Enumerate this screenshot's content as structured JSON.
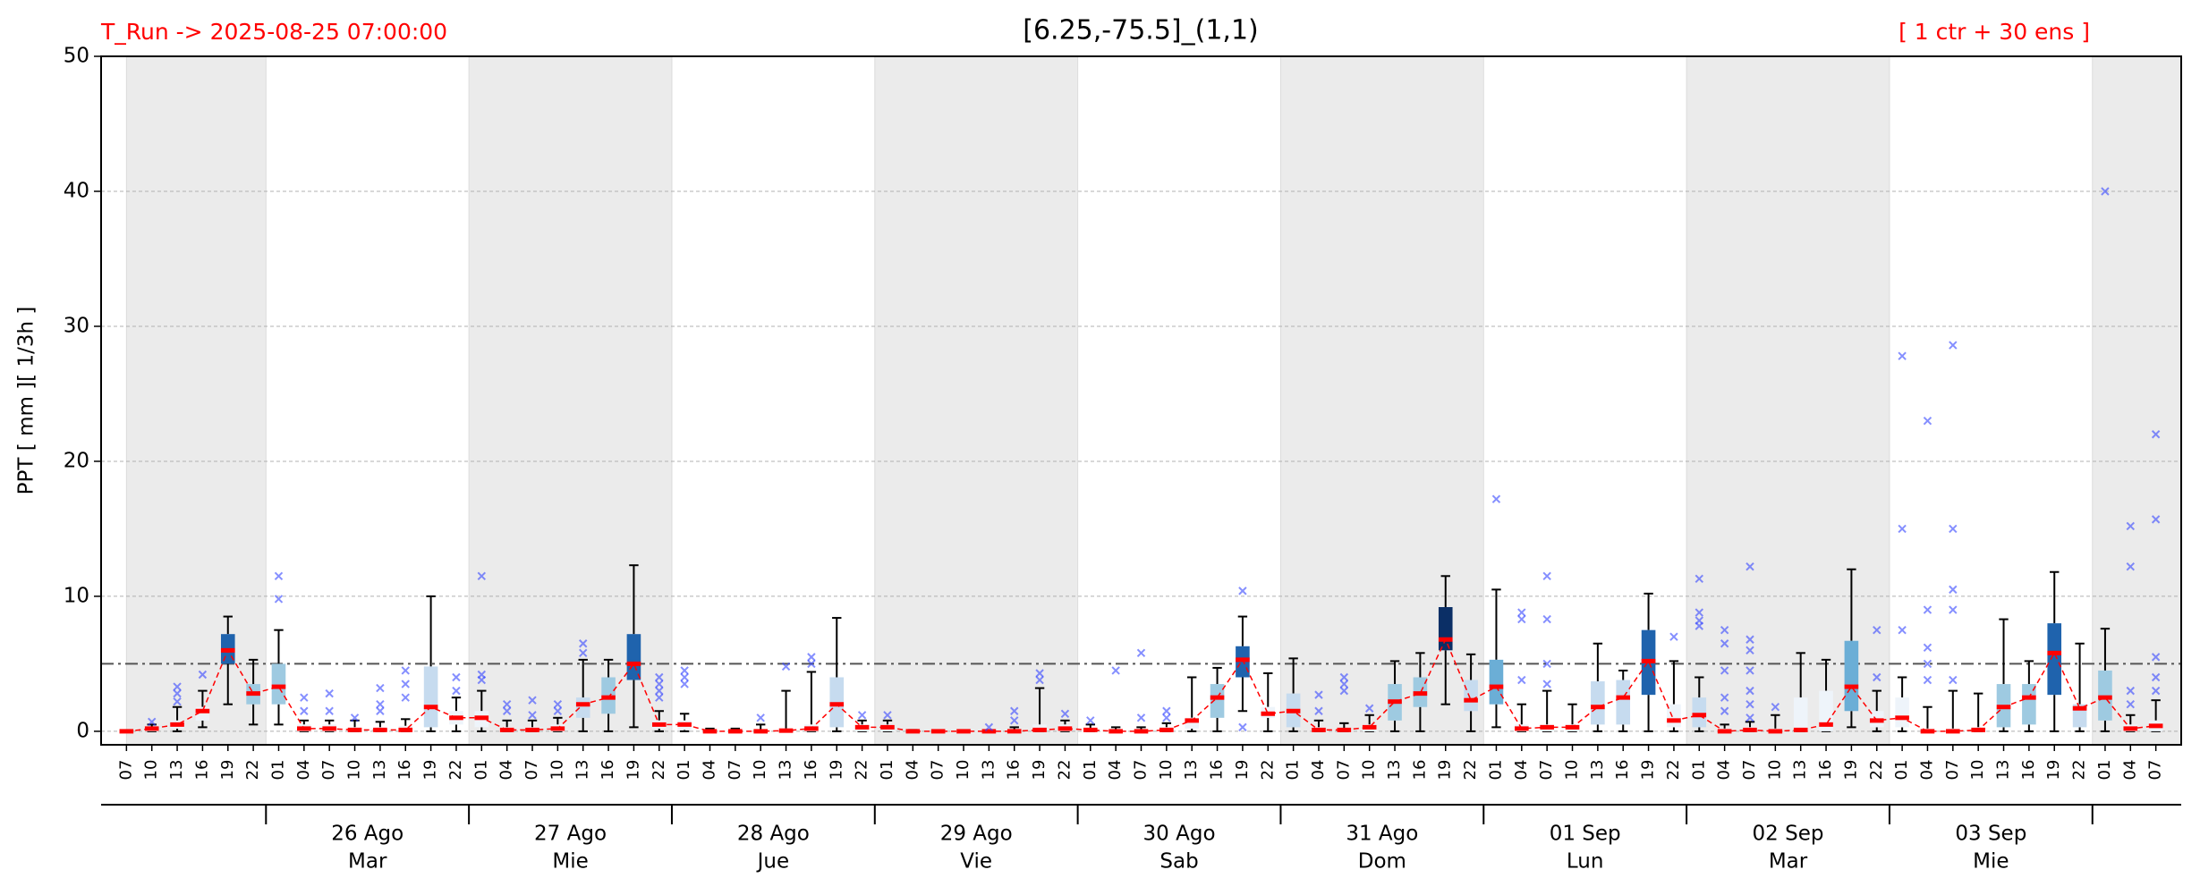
{
  "chart_data": {
    "type": "box",
    "title": "[6.25,-75.5]_(1,1)",
    "run_label": "T_Run -> 2025-08-25  07:00:00",
    "ens_label": "[ 1 ctr + 30 ens ]",
    "y_label": "PPT  [ mm ][ 1/3h ]",
    "ylim": [
      -1,
      50
    ],
    "yticks": [
      0,
      10,
      20,
      30,
      40,
      50
    ],
    "grid": true,
    "threshold": 5,
    "median_color": "#ff0000",
    "whisker_color": "#000000",
    "outlier_color": "#3344ff",
    "threshold_color": "#555555",
    "day_groups": [
      {
        "date": null,
        "weekday": null,
        "hours": [
          "07",
          "10",
          "13",
          "16",
          "19",
          "22"
        ]
      },
      {
        "date": "26 Ago",
        "weekday": "Mar",
        "hours": [
          "01",
          "04",
          "07",
          "10",
          "13",
          "16",
          "19",
          "22"
        ]
      },
      {
        "date": "27 Ago",
        "weekday": "Mie",
        "hours": [
          "01",
          "04",
          "07",
          "10",
          "13",
          "16",
          "19",
          "22"
        ]
      },
      {
        "date": "28 Ago",
        "weekday": "Jue",
        "hours": [
          "01",
          "04",
          "07",
          "10",
          "13",
          "16",
          "19",
          "22"
        ]
      },
      {
        "date": "29 Ago",
        "weekday": "Vie",
        "hours": [
          "01",
          "04",
          "07",
          "10",
          "13",
          "16",
          "19",
          "22"
        ]
      },
      {
        "date": "30 Ago",
        "weekday": "Sab",
        "hours": [
          "01",
          "04",
          "07",
          "10",
          "13",
          "16",
          "19",
          "22"
        ]
      },
      {
        "date": "31 Ago",
        "weekday": "Dom",
        "hours": [
          "01",
          "04",
          "07",
          "10",
          "13",
          "16",
          "19",
          "22"
        ]
      },
      {
        "date": "01 Sep",
        "weekday": "Lun",
        "hours": [
          "01",
          "04",
          "07",
          "10",
          "13",
          "16",
          "19",
          "22"
        ]
      },
      {
        "date": "02 Sep",
        "weekday": "Mar",
        "hours": [
          "01",
          "04",
          "07",
          "10",
          "13",
          "16",
          "19",
          "22"
        ]
      },
      {
        "date": "03 Sep",
        "weekday": "Mie",
        "hours": [
          "01",
          "04",
          "07",
          "10",
          "13",
          "16",
          "19",
          "22"
        ]
      },
      {
        "date": null,
        "weekday": null,
        "hours": [
          "01",
          "04",
          "07"
        ]
      }
    ],
    "median": [
      0,
      0.2,
      0.5,
      1.5,
      6,
      2.8,
      3.3,
      0.2,
      0.2,
      0.1,
      0.1,
      0.1,
      1.8,
      1,
      1,
      0.1,
      0.1,
      0.2,
      2,
      2.5,
      5,
      0.5,
      0.5,
      0,
      0,
      0,
      0.05,
      0.2,
      2,
      0.3,
      0.3,
      0,
      0,
      0,
      0,
      0,
      0.1,
      0.2,
      0.1,
      0,
      0,
      0.1,
      0.8,
      2.5,
      5.3,
      1.3,
      1.5,
      0.1,
      0.1,
      0.3,
      2.2,
      2.8,
      6.8,
      2.3,
      3.3,
      0.2,
      0.3,
      0.3,
      1.8,
      2.5,
      5.2,
      0.8,
      1.2,
      0,
      0.1,
      0,
      0.1,
      0.5,
      3.3,
      0.8,
      1,
      0,
      0,
      0.1,
      1.8,
      2.5,
      5.8,
      1.7,
      2.5,
      0.2,
      0.4
    ],
    "q1": [
      0,
      0,
      0.2,
      0.8,
      5,
      2,
      2,
      0,
      0,
      0,
      0,
      0,
      0.3,
      0.5,
      0.3,
      0,
      0,
      0,
      1,
      1.3,
      3.8,
      0.2,
      0.1,
      0,
      0,
      0,
      0,
      0,
      0.3,
      0,
      0,
      0,
      0,
      0,
      0,
      0,
      0,
      0,
      0,
      0,
      0,
      0,
      0.2,
      1,
      4,
      1,
      0.3,
      0,
      0,
      0,
      0.8,
      1.8,
      6,
      1.5,
      2,
      0,
      0,
      0,
      0.5,
      0.5,
      2.7,
      0.3,
      0.3,
      0,
      0,
      0,
      0,
      0,
      1.5,
      0.3,
      0.3,
      0,
      0,
      0,
      0.3,
      0.5,
      2.7,
      0.3,
      0.8,
      0,
      0
    ],
    "q3": [
      0,
      0.3,
      0.8,
      1.8,
      7.2,
      3.5,
      5,
      0.5,
      0.5,
      0.3,
      0.3,
      0.4,
      4.8,
      1.5,
      1.5,
      0.3,
      0.3,
      0.5,
      2.5,
      4,
      7.2,
      0.8,
      0.8,
      0.1,
      0.1,
      0.1,
      0.2,
      0.5,
      4,
      0.5,
      0.5,
      0,
      0,
      0,
      0,
      0.1,
      0.5,
      0.5,
      0.2,
      0.1,
      0.1,
      0.3,
      1,
      3.5,
      6.3,
      1.8,
      2.8,
      0.3,
      0.2,
      0.5,
      3.5,
      4,
      9.2,
      3.8,
      5.3,
      0.5,
      0.5,
      0.5,
      3.7,
      3.8,
      7.5,
      2,
      2.5,
      0.2,
      0.3,
      0.2,
      2.5,
      3,
      6.7,
      1.5,
      2.5,
      0.2,
      0.2,
      0.3,
      3.5,
      3.5,
      8,
      2,
      4.5,
      0.5,
      0.8
    ],
    "whisker_low": [
      0,
      0,
      0,
      0.3,
      2,
      0.5,
      0.5,
      0,
      0,
      0,
      0,
      0,
      0,
      0,
      0,
      0,
      0,
      0,
      0,
      0,
      0.3,
      0,
      0,
      0,
      0,
      0,
      0,
      0,
      0,
      0,
      0,
      0,
      0,
      0,
      0,
      0,
      0,
      0,
      0,
      0,
      0,
      0,
      0,
      0,
      1.5,
      0,
      0,
      0,
      0,
      0,
      0,
      0,
      2,
      0,
      0.3,
      0,
      0,
      0,
      0,
      0,
      0,
      0,
      0,
      0,
      0,
      0,
      0,
      0,
      0.3,
      0,
      0,
      0,
      0,
      0,
      0,
      0,
      0,
      0,
      0,
      0,
      0
    ],
    "whisker_high": [
      0,
      0.5,
      1.8,
      3,
      8.5,
      5.3,
      7.5,
      0.8,
      0.8,
      0.8,
      0.7,
      0.9,
      10,
      2.5,
      3,
      0.8,
      0.8,
      1,
      5.3,
      5.3,
      12.3,
      1.5,
      1.3,
      0.2,
      0.2,
      0.5,
      3,
      4.4,
      8.4,
      0.8,
      0.8,
      0.1,
      0,
      0,
      0,
      0.3,
      3.2,
      0.8,
      0.5,
      0.3,
      0.3,
      0.6,
      4,
      4.7,
      8.5,
      4.3,
      5.4,
      0.8,
      0.6,
      1.2,
      5.2,
      5.8,
      11.5,
      5.7,
      10.5,
      2,
      3,
      2,
      6.5,
      4.5,
      10.2,
      5.2,
      4,
      0.5,
      0.7,
      1.2,
      5.8,
      5.3,
      12,
      3,
      4,
      1.8,
      3,
      2.8,
      8.3,
      5.2,
      11.8,
      6.5,
      7.6,
      1.2,
      2.3
    ],
    "outliers": [
      [],
      [
        0.7
      ],
      [
        2.2,
        2.8,
        3.3
      ],
      [
        4.2
      ],
      [],
      [],
      [
        9.8,
        11.5
      ],
      [
        1.5,
        2.5
      ],
      [
        1.5,
        2.8
      ],
      [
        1
      ],
      [
        1.5,
        2,
        3.2
      ],
      [
        2.5,
        3.5,
        4.5
      ],
      [],
      [
        3,
        4
      ],
      [
        3.8,
        4.2,
        11.5
      ],
      [
        1.5,
        2
      ],
      [
        1.2,
        2.3
      ],
      [
        1.5,
        2
      ],
      [
        5.8,
        6.5
      ],
      [],
      [],
      [
        2.5,
        3,
        3.5,
        4
      ],
      [
        3.5,
        4,
        4.5
      ],
      [],
      [],
      [
        1
      ],
      [
        4.8
      ],
      [
        5,
        5.5
      ],
      [],
      [
        1.2
      ],
      [
        1.2
      ],
      [],
      [],
      [],
      [
        0.3
      ],
      [
        0.8,
        1.5
      ],
      [
        3.8,
        4.3
      ],
      [
        1.3
      ],
      [
        0.8
      ],
      [
        4.5
      ],
      [
        1,
        5.8
      ],
      [
        1,
        1.5
      ],
      [],
      [],
      [
        0.3,
        10.4
      ],
      [],
      [],
      [
        1.5,
        2.7
      ],
      [
        3,
        3.5,
        4
      ],
      [
        1.7
      ],
      [],
      [],
      [],
      [],
      [
        17.2
      ],
      [
        3.8,
        8.3,
        8.8
      ],
      [
        3.5,
        5,
        8.3,
        11.5
      ],
      [],
      [],
      [],
      [],
      [
        7
      ],
      [
        7.8,
        8.2,
        8.8,
        11.3
      ],
      [
        1.5,
        2.5,
        4.5,
        6.5,
        7.5
      ],
      [
        1,
        2,
        3,
        4.5,
        6,
        6.8,
        12.2
      ],
      [
        1.8
      ],
      [],
      [],
      [],
      [
        4,
        7.5
      ],
      [
        7.5,
        15,
        27.8
      ],
      [
        3.8,
        5,
        6.2,
        9,
        23
      ],
      [
        3.8,
        9,
        10.5,
        15,
        28.6
      ],
      [],
      [],
      [],
      [],
      [],
      [
        40
      ],
      [
        2,
        3,
        12.2,
        15.2
      ],
      [
        3,
        4,
        5.5,
        15.7,
        22
      ]
    ],
    "box_colors": [
      "#eef4fa",
      "#eef4fa",
      "#eef4fa",
      "#eef4fa",
      "#1f63ad",
      "#9ecae1",
      "#9ecae1",
      "#eef4fa",
      "#eef4fa",
      "#eef4fa",
      "#eef4fa",
      "#eef4fa",
      "#c6dbef",
      "#eef4fa",
      "#eef4fa",
      "#eef4fa",
      "#eef4fa",
      "#eef4fa",
      "#c6dbef",
      "#9ecae1",
      "#1f63ad",
      "#eef4fa",
      "#eef4fa",
      "#eef4fa",
      "#eef4fa",
      "#eef4fa",
      "#eef4fa",
      "#eef4fa",
      "#c6dbef",
      "#eef4fa",
      "#eef4fa",
      "#eef4fa",
      "#eef4fa",
      "#eef4fa",
      "#eef4fa",
      "#eef4fa",
      "#eef4fa",
      "#eef4fa",
      "#eef4fa",
      "#eef4fa",
      "#eef4fa",
      "#eef4fa",
      "#eef4fa",
      "#9ecae1",
      "#1f63ad",
      "#eef4fa",
      "#c6dbef",
      "#eef4fa",
      "#eef4fa",
      "#eef4fa",
      "#9ecae1",
      "#9ecae1",
      "#0b2f66",
      "#c6dbef",
      "#6baed6",
      "#eef4fa",
      "#eef4fa",
      "#eef4fa",
      "#c6dbef",
      "#c6dbef",
      "#1f63ad",
      "#eef4fa",
      "#c6dbef",
      "#eef4fa",
      "#eef4fa",
      "#eef4fa",
      "#eef4fa",
      "#eef4fa",
      "#6baed6",
      "#eef4fa",
      "#eef4fa",
      "#eef4fa",
      "#eef4fa",
      "#eef4fa",
      "#9ecae1",
      "#9ecae1",
      "#1f63ad",
      "#c6dbef",
      "#9ecae1",
      "#eef4fa",
      "#eef4fa"
    ]
  }
}
